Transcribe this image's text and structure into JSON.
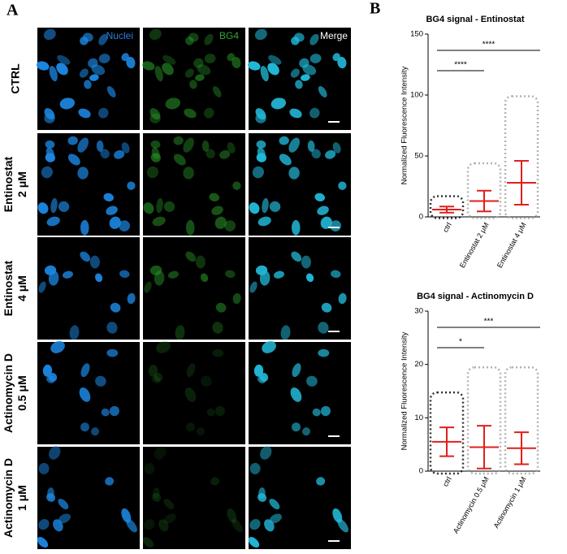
{
  "panel_a": {
    "label": "A",
    "columns": [
      "Nuclei",
      "BG4",
      "Merge"
    ],
    "rows": [
      [
        "CTRL"
      ],
      [
        "Entinostat",
        "2 μM"
      ],
      [
        "Entinostat",
        "4 μM"
      ],
      [
        "Actinomycin D",
        "0.5 μM"
      ],
      [
        "Actinomycin D",
        "1 μM"
      ]
    ]
  },
  "panel_b": {
    "label": "B"
  },
  "chart_data": [
    {
      "type": "dot",
      "title": "BG4 signal - Entinostat",
      "y_label": "Normalized Fluorescence Intensity",
      "categories": [
        "ctrl",
        "Entinostat 2 μM",
        "Entinostat 4 μM"
      ],
      "colors": [
        "#000000",
        "#a0a0a0",
        "#a0a0a0"
      ],
      "bar_color": "#e0201c",
      "mean": [
        6,
        13,
        28
      ],
      "sd": [
        2.5,
        8.5,
        18
      ],
      "range": [
        [
          1,
          15
        ],
        [
          1,
          42
        ],
        [
          1,
          97
        ]
      ],
      "ylim": [
        0,
        150
      ],
      "yticks": [
        0,
        50,
        100,
        150
      ],
      "comparisons": [
        {
          "label": "****",
          "pair": [
            0,
            1
          ]
        },
        {
          "label": "****",
          "pair": [
            0,
            2
          ]
        }
      ]
    },
    {
      "type": "dot",
      "title": "BG4 signal - Actinomycin D",
      "y_label": "Normalized Fluorescence Intensity",
      "categories": [
        "ctrl",
        "Actinomycin 0.5 μM",
        "Actinomycin 1 μM"
      ],
      "colors": [
        "#000000",
        "#a0a0a0",
        "#a0a0a0"
      ],
      "bar_color": "#e0201c",
      "mean": [
        5.5,
        4.5,
        4.3
      ],
      "sd": [
        2.7,
        4,
        3
      ],
      "range": [
        [
          0,
          14.3
        ],
        [
          0,
          19
        ],
        [
          0,
          19
        ]
      ],
      "ylim": [
        0,
        30
      ],
      "yticks": [
        0,
        10,
        20,
        30
      ],
      "comparisons": [
        {
          "label": "*",
          "pair": [
            0,
            1
          ]
        },
        {
          "label": "***",
          "pair": [
            0,
            2
          ]
        }
      ]
    }
  ]
}
